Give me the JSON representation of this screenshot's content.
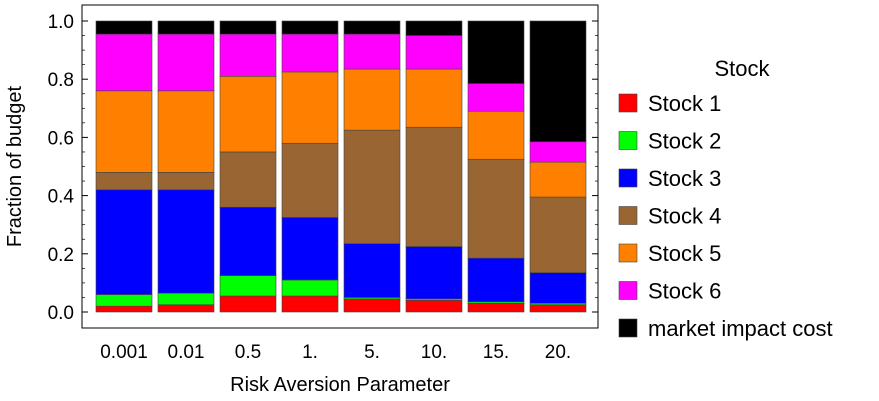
{
  "chart_data": {
    "type": "bar",
    "stacked": true,
    "title": "",
    "xlabel": "Risk Aversion Parameter",
    "ylabel": "Fraction of budget",
    "ylim": [
      0,
      1.0
    ],
    "yticks": [
      "0.0",
      "0.2",
      "0.4",
      "0.6",
      "0.8",
      "1.0"
    ],
    "categories": [
      "0.001",
      "0.01",
      "0.5",
      "1.",
      "5.",
      "10.",
      "15.",
      "20."
    ],
    "legend_title": "Stock",
    "legend_position": "right",
    "series": [
      {
        "name": "Stock 1",
        "color": "#ff0000",
        "values": [
          0.02,
          0.025,
          0.055,
          0.055,
          0.045,
          0.04,
          0.03,
          0.025
        ]
      },
      {
        "name": "Stock 2",
        "color": "#00ff00",
        "values": [
          0.04,
          0.04,
          0.07,
          0.055,
          0.005,
          0.005,
          0.005,
          0.005
        ]
      },
      {
        "name": "Stock 3",
        "color": "#0000ff",
        "values": [
          0.36,
          0.355,
          0.235,
          0.215,
          0.185,
          0.18,
          0.15,
          0.105
        ]
      },
      {
        "name": "Stock 4",
        "color": "#996633",
        "values": [
          0.06,
          0.06,
          0.19,
          0.255,
          0.39,
          0.41,
          0.34,
          0.26
        ]
      },
      {
        "name": "Stock 5",
        "color": "#ff8000",
        "values": [
          0.28,
          0.28,
          0.26,
          0.245,
          0.21,
          0.2,
          0.165,
          0.12
        ]
      },
      {
        "name": "Stock 6",
        "color": "#ff00ff",
        "values": [
          0.195,
          0.195,
          0.145,
          0.13,
          0.12,
          0.115,
          0.095,
          0.07
        ]
      },
      {
        "name": "market impact cost",
        "color": "#000000",
        "values": [
          0.045,
          0.045,
          0.045,
          0.045,
          0.045,
          0.05,
          0.215,
          0.415
        ]
      }
    ]
  }
}
